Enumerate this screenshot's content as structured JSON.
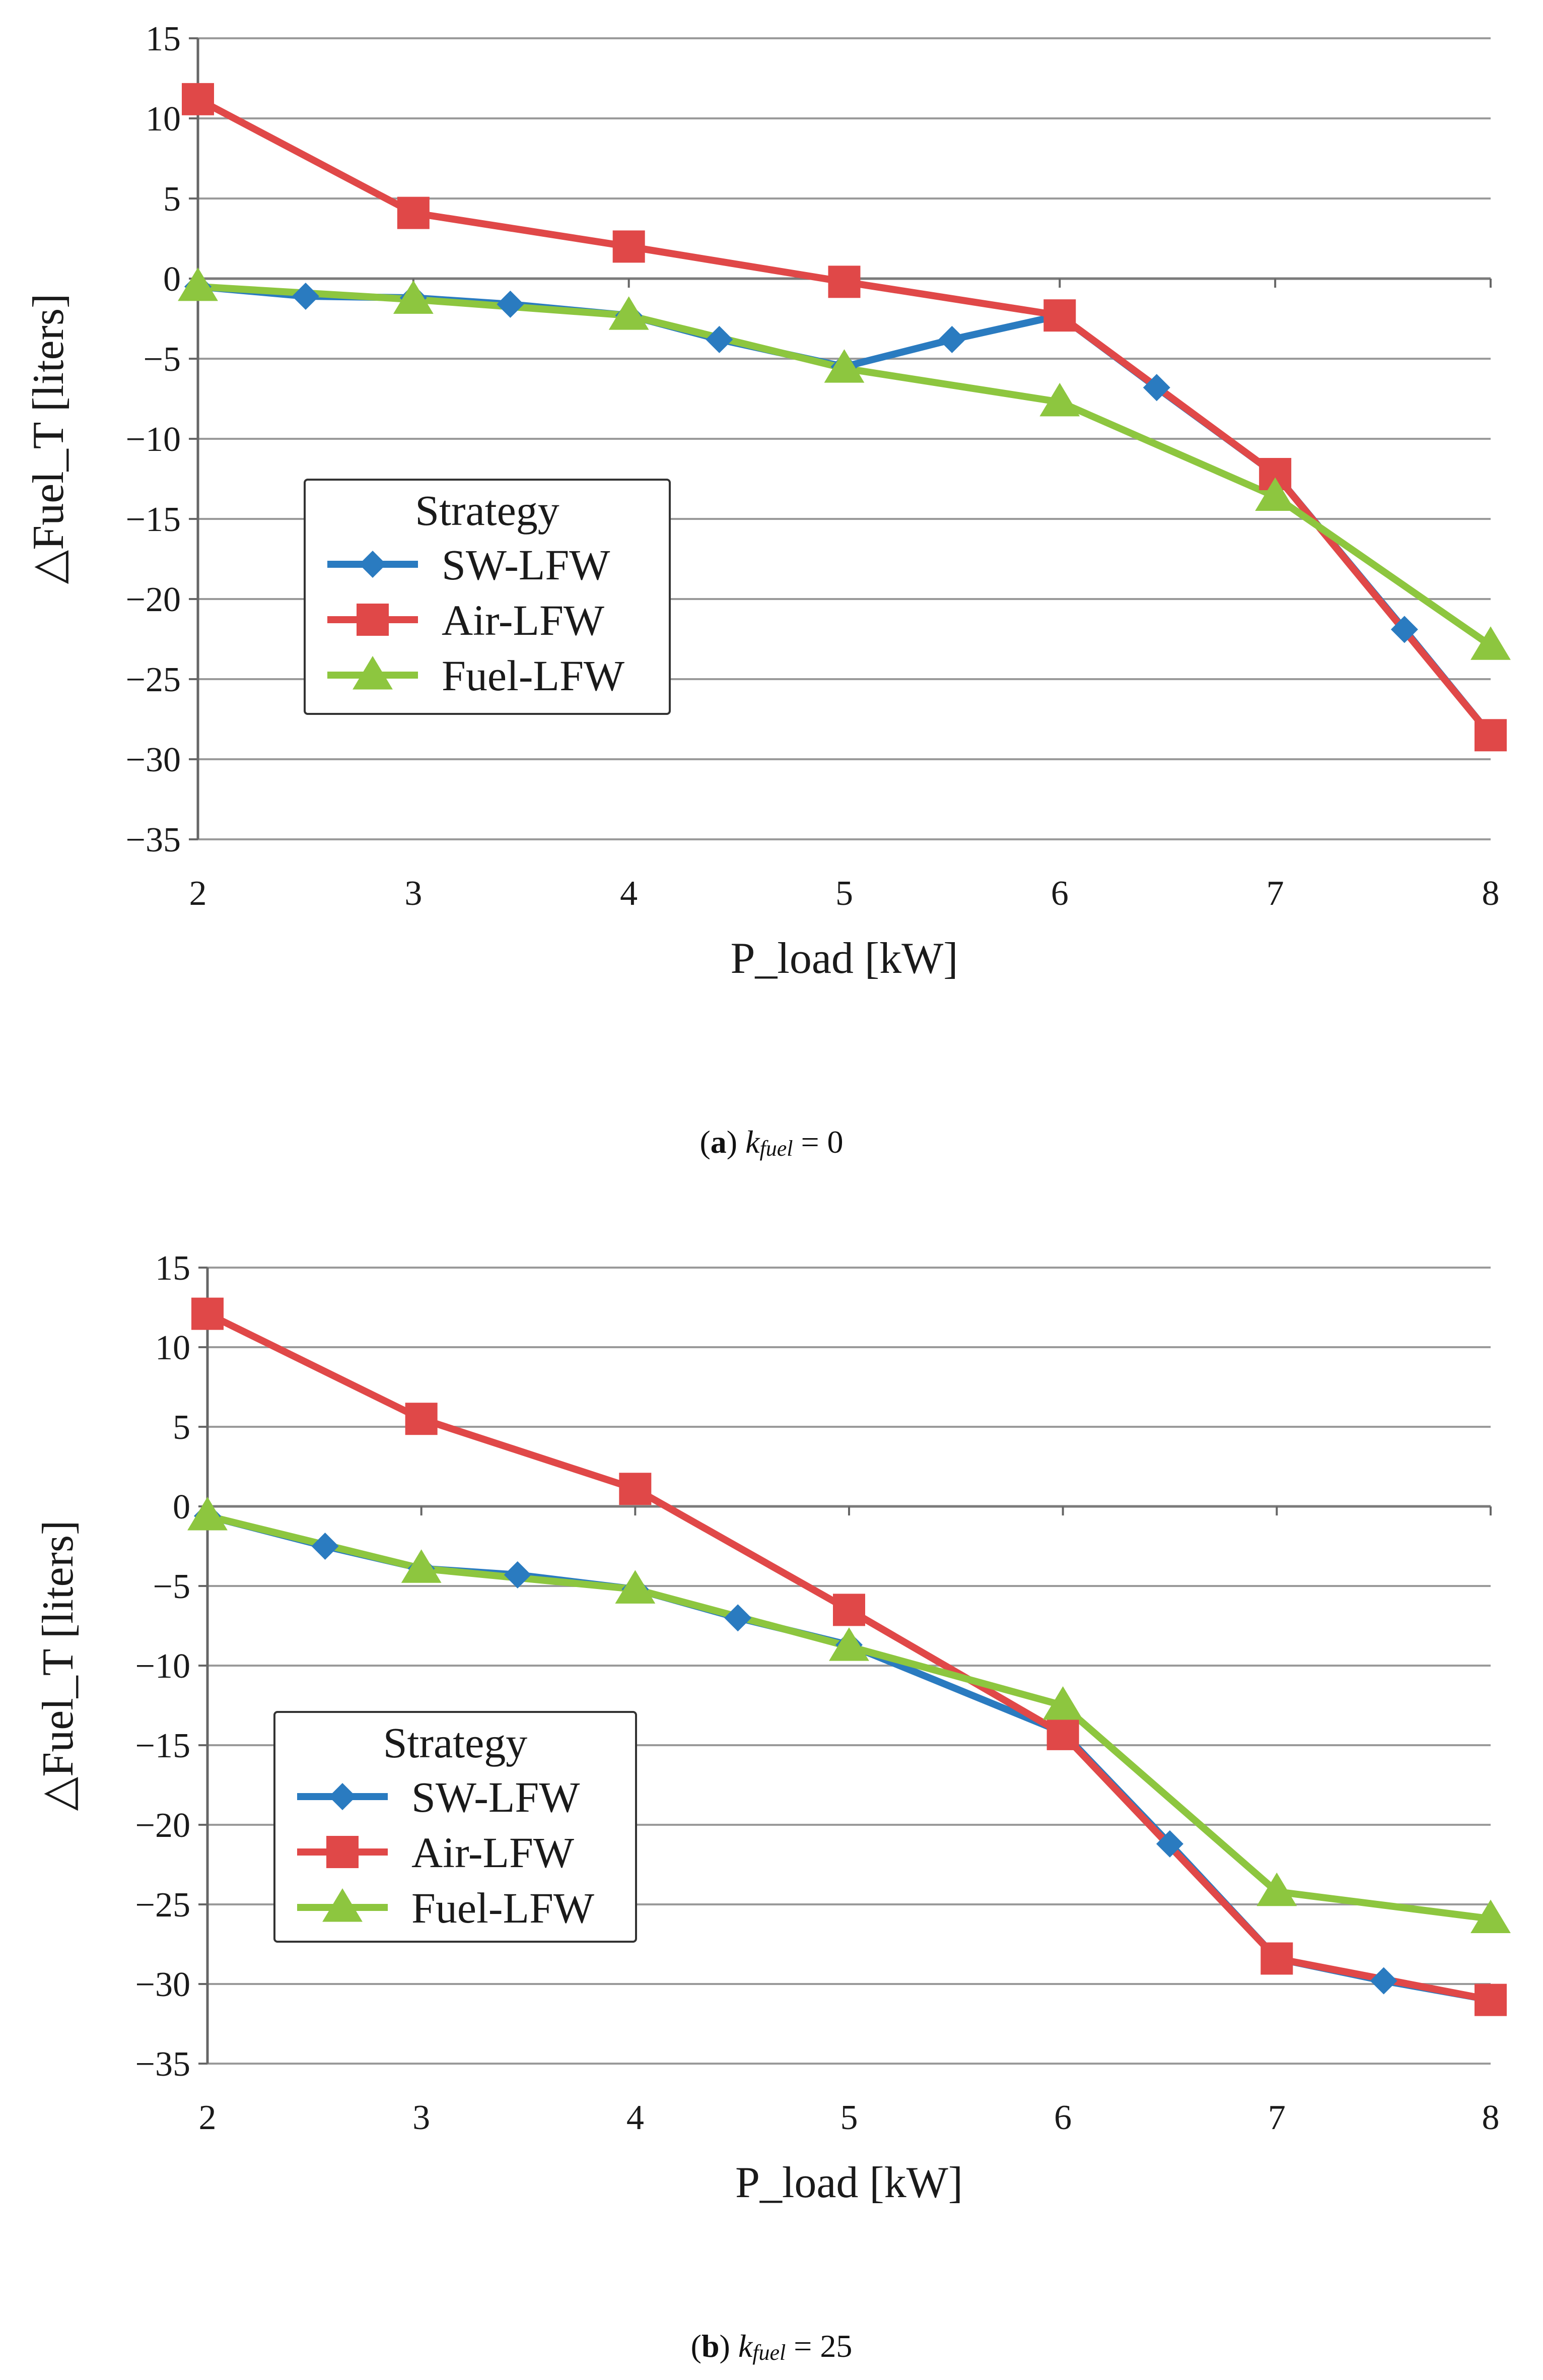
{
  "colors": {
    "sw": "#2A7BC0",
    "air": "#E04848",
    "fuel": "#8DC63F",
    "grid": "#9a9a9a",
    "axis": "#666666"
  },
  "chart_data": [
    {
      "type": "line",
      "xlabel": "P_load [kW]",
      "ylabel": "△Fuel_T [liters]",
      "xlim": [
        2,
        8
      ],
      "ylim": [
        -35,
        15
      ],
      "xticks": [
        2,
        3,
        4,
        5,
        6,
        7,
        8
      ],
      "yticks": [
        15,
        10,
        5,
        0,
        -5,
        -10,
        -15,
        -20,
        -25,
        -30,
        -35
      ],
      "grid": true,
      "legend": {
        "title": "Strategy",
        "position": "middle-left"
      },
      "caption": {
        "letter": "a",
        "var": "k",
        "sub": "fuel",
        "value": "= 0"
      },
      "series": [
        {
          "name": "SW-LFW",
          "color_key": "sw",
          "marker": "diamond",
          "x": [
            2,
            2.5,
            3,
            3.45,
            4,
            4.42,
            5,
            5.5,
            6,
            6.45,
            7,
            7.6,
            8
          ],
          "y": [
            -0.5,
            -1.1,
            -1.2,
            -1.6,
            -2.3,
            -3.8,
            -5.5,
            -3.8,
            -2.3,
            -6.8,
            -12.2,
            -21.9,
            -28.5
          ]
        },
        {
          "name": "Air-LFW",
          "color_key": "air",
          "marker": "square",
          "x": [
            2,
            3,
            4,
            5,
            6,
            7,
            8
          ],
          "y": [
            11.2,
            4.1,
            2.0,
            -0.2,
            -2.3,
            -12.2,
            -28.5
          ]
        },
        {
          "name": "Fuel-LFW",
          "color_key": "fuel",
          "marker": "triangle",
          "x": [
            2,
            3,
            4,
            5,
            6,
            7,
            8
          ],
          "y": [
            -0.5,
            -1.3,
            -2.3,
            -5.6,
            -7.7,
            -13.6,
            -22.9
          ]
        }
      ]
    },
    {
      "type": "line",
      "xlabel": "P_load [kW]",
      "ylabel": "△Fuel_T [liters]",
      "xlim": [
        2,
        8
      ],
      "ylim": [
        -35,
        15
      ],
      "xticks": [
        2,
        3,
        4,
        5,
        6,
        7,
        8
      ],
      "yticks": [
        15,
        10,
        5,
        0,
        -5,
        -10,
        -15,
        -20,
        -25,
        -30,
        -35
      ],
      "grid": true,
      "legend": {
        "title": "Strategy",
        "position": "middle-left"
      },
      "caption": {
        "letter": "b",
        "var": "k",
        "sub": "fuel",
        "value": "= 25"
      },
      "series": [
        {
          "name": "SW-LFW",
          "color_key": "sw",
          "marker": "diamond",
          "x": [
            2,
            2.55,
            3,
            3.45,
            4,
            4.48,
            5,
            6,
            6.5,
            7,
            7.5,
            8
          ],
          "y": [
            -0.6,
            -2.5,
            -3.9,
            -4.3,
            -5.2,
            -7.0,
            -8.7,
            -14.2,
            -21.2,
            -28.4,
            -29.8,
            -31.0
          ]
        },
        {
          "name": "Air-LFW",
          "color_key": "air",
          "marker": "square",
          "x": [
            2,
            3,
            4,
            5,
            6,
            7,
            8
          ],
          "y": [
            12.1,
            5.5,
            1.1,
            -6.5,
            -14.3,
            -28.4,
            -31.0
          ]
        },
        {
          "name": "Fuel-LFW",
          "color_key": "fuel",
          "marker": "triangle",
          "x": [
            2,
            3,
            4,
            5,
            6,
            7,
            8
          ],
          "y": [
            -0.6,
            -3.9,
            -5.2,
            -8.8,
            -12.5,
            -24.2,
            -25.9
          ]
        }
      ]
    }
  ]
}
